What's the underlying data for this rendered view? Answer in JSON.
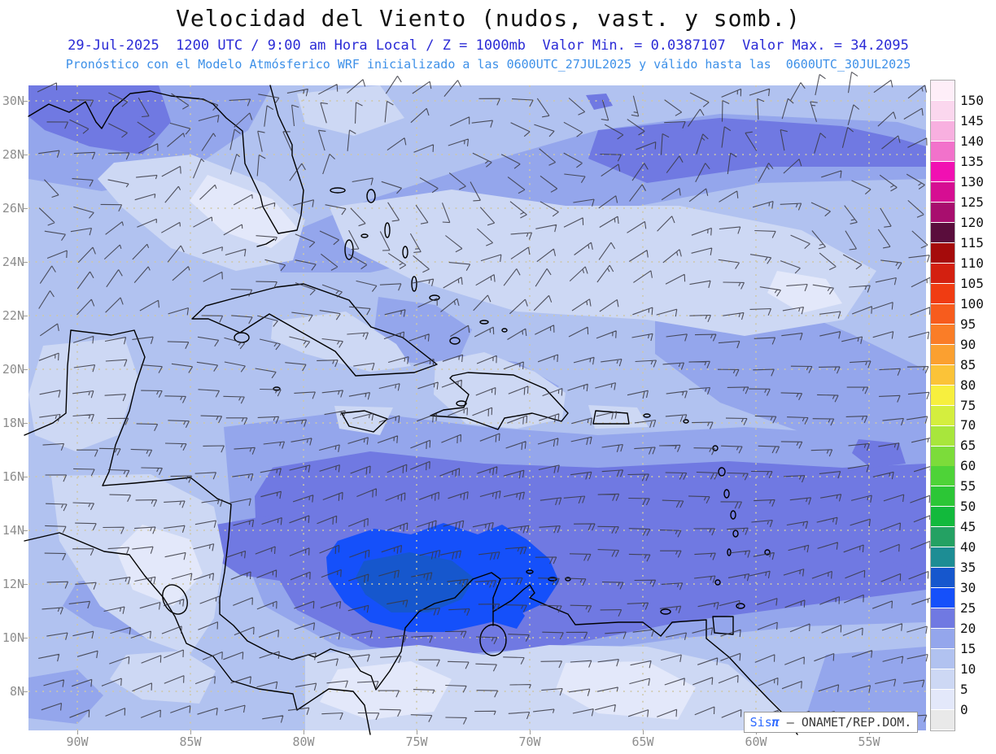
{
  "header": {
    "title": "Velocidad del Viento (nudos, vast. y somb.)",
    "title_color": "#111111",
    "subtitle1": "29-Jul-2025  1200 UTC / 9:00 am Hora Local / Z = 1000mb  Valor Min. = 0.0387107  Valor Max. = 34.2095",
    "subtitle1_color": "#2b2bd6",
    "subtitle2": "Pronóstico con el Modelo Atmósferico WRF inicializado a las 0600UTC_27JUL2025 y válido hasta las  0600UTC_30JUL2025",
    "subtitle2_color": "#3d90e8"
  },
  "map": {
    "lat_labels": [
      "30N",
      "28N",
      "26N",
      "24N",
      "22N",
      "20N",
      "18N",
      "16N",
      "14N",
      "12N",
      "10N",
      "8N"
    ],
    "lon_labels": [
      "90W",
      "85W",
      "80W",
      "75W",
      "70W",
      "65W",
      "60W",
      "55W"
    ],
    "axis_label_color": "#8e8e8e",
    "units": "nudos",
    "level": "1000mb",
    "valor_min": "0.0387107",
    "valor_max": "34.2095"
  },
  "colorbar": {
    "tick_labels": [
      "150",
      "145",
      "140",
      "135",
      "130",
      "125",
      "120",
      "115",
      "110",
      "105",
      "100",
      "95",
      "90",
      "85",
      "80",
      "75",
      "70",
      "65",
      "60",
      "55",
      "50",
      "45",
      "40",
      "35",
      "30",
      "25",
      "20",
      "15",
      "10",
      "5",
      "0"
    ],
    "colors_bottom_to_top": [
      "#e9e9e9",
      "#e3e8fa",
      "#cdd8f4",
      "#b1c2f0",
      "#94a6ec",
      "#7079e2",
      "#1550fa",
      "#1657cd",
      "#1d8d94",
      "#24a163",
      "#12b93c",
      "#2cc636",
      "#4ed338",
      "#7cdc3a",
      "#a8e63c",
      "#d4ee3e",
      "#f7ef3e",
      "#fbc338",
      "#fba030",
      "#fa7d27",
      "#f75c1d",
      "#f03c12",
      "#d32010",
      "#a50b0b",
      "#5a0d3c",
      "#a80e6e",
      "#d60e92",
      "#f110b2",
      "#f272cb",
      "#f8b0e0",
      "#fbd7ee",
      "#feeef8"
    ],
    "label_color": "#111111"
  },
  "wind_field": {
    "barb_color": "#383842",
    "grid_dot_color": "#cdc7a8",
    "coastline_color": "#000000"
  },
  "branding": {
    "app": "Sis",
    "pi": "π",
    "separator": " – ",
    "org": "ONAMET/REP.DOM.",
    "app_color": "#2f6bff",
    "org_color": "#3a3a3a"
  }
}
